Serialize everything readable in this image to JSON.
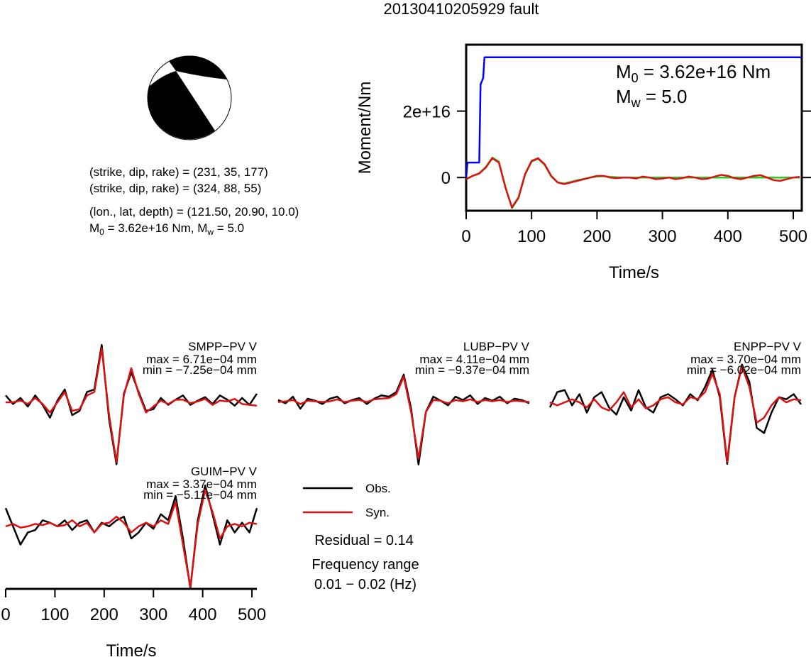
{
  "title": "20130410205929 fault",
  "mechanism": {
    "plane1": "(strike, dip, rake) = (231, 35, 177)",
    "plane2": "(strike, dip, rake) = (324, 88, 55)",
    "location": "(lon., lat, depth) = (121.50, 20.90, 10.0)",
    "m0_symbol": "M",
    "m0_sub": "0",
    "m0_text": " = 3.62e+16 Nm, ",
    "mw_symbol": "M",
    "mw_sub": "w",
    "mw_text": " = 5.0"
  },
  "summary": {
    "residual": "Residual = 0.14",
    "frequency_range": "Frequency range",
    "frequency_values": "0.01 − 0.02 (Hz)"
  },
  "chart_data": [
    {
      "type": "line",
      "xlabel": "Time/s",
      "ylabel": "Moment/Nm",
      "xlim": [
        0,
        513
      ],
      "ylim": [
        -1e+16,
        4e+16
      ],
      "xticks": [
        0,
        100,
        200,
        300,
        400,
        500
      ],
      "yticks": [
        0,
        {
          "value": 2e+16,
          "label": "2e+16"
        }
      ],
      "annotations": [
        {
          "symbol": "M",
          "sub": "0",
          "text": " = 3.62e+16 Nm"
        },
        {
          "symbol": "M",
          "sub": "w",
          "text": " = 5.0"
        }
      ],
      "x": [
        0,
        10,
        20,
        30,
        40,
        50,
        60,
        70,
        80,
        90,
        100,
        110,
        120,
        130,
        140,
        150,
        160,
        170,
        180,
        190,
        200,
        210,
        220,
        230,
        240,
        250,
        260,
        270,
        280,
        290,
        300,
        310,
        320,
        330,
        340,
        350,
        360,
        370,
        380,
        390,
        400,
        410,
        420,
        430,
        440,
        450,
        460,
        470,
        480,
        490,
        500,
        510
      ],
      "series": [
        {
          "color": "#0000ff",
          "x": [
            0,
            2,
            20,
            22,
            26,
            28,
            513
          ],
          "values": [
            0,
            4500000000000000.0,
            4500000000000000.0,
            2.8e+16,
            3e+16,
            3.62e+16,
            3.62e+16
          ]
        },
        {
          "color": "#22cc22",
          "values": [
            -500000000000000.0,
            500000000000000.0,
            1300000000000000.0,
            3200000000000000.0,
            6000000000000000.0,
            4800000000000000.0,
            -2800000000000000.0,
            -9200000000000000.0,
            -6200000000000000.0,
            800000000000000.0,
            4800000000000000.0,
            5600000000000000.0,
            3800000000000000.0,
            300000000000000.0,
            -1500000000000000.0,
            -1800000000000000.0,
            -1300000000000000.0,
            -800000000000000.0,
            -400000000000000.0,
            0,
            300000000000000.0,
            400000000000000.0,
            200000000000000.0,
            100000000000000.0,
            0,
            0,
            0,
            0,
            0,
            0,
            0,
            0,
            0,
            0,
            0,
            0,
            0,
            0,
            0,
            0,
            0,
            0,
            0,
            0,
            0,
            0,
            0,
            0,
            0,
            0,
            0,
            0
          ]
        },
        {
          "color": "#dd1111",
          "values": [
            -500000000000000.0,
            500000000000000.0,
            1200000000000000.0,
            3000000000000000.0,
            5800000000000000.0,
            4500000000000000.0,
            -3000000000000000.0,
            -9000000000000000.0,
            -6000000000000000.0,
            1000000000000000.0,
            5000000000000000.0,
            5800000000000000.0,
            4000000000000000.0,
            500000000000000.0,
            -1500000000000000.0,
            -2000000000000000.0,
            -1500000000000000.0,
            -1000000000000000.0,
            -500000000000000.0,
            0,
            500000000000000.0,
            500000000000000.0,
            0,
            -200000000000000.0,
            0,
            0,
            -300000000000000.0,
            300000000000000.0,
            0,
            -500000000000000.0,
            -300000000000000.0,
            0,
            -500000000000000.0,
            -200000000000000.0,
            300000000000000.0,
            0,
            -500000000000000.0,
            -300000000000000.0,
            300000000000000.0,
            800000000000000.0,
            500000000000000.0,
            -200000000000000.0,
            -500000000000000.0,
            0,
            500000000000000.0,
            700000000000000.0,
            0,
            -800000000000000.0,
            -1000000000000000.0,
            -500000000000000.0,
            0,
            200000000000000.0
          ]
        }
      ]
    },
    {
      "type": "line",
      "title": "SMPP−PV V",
      "max_label": "max = 6.71e−04 mm",
      "min_label": "min = −7.25e−04 mm",
      "xlim": [
        0,
        510
      ],
      "ylim": [
        -0.00073,
        0.000705
      ],
      "x": [
        0,
        15,
        30,
        45,
        60,
        75,
        90,
        105,
        120,
        135,
        150,
        165,
        180,
        195,
        210,
        225,
        240,
        255,
        270,
        285,
        300,
        315,
        330,
        345,
        360,
        375,
        390,
        405,
        420,
        435,
        450,
        465,
        480,
        495,
        510
      ],
      "series": [
        {
          "color": "#000000",
          "values": [
            8e-05,
            -2e-05,
            5e-05,
            -5e-05,
            8e-05,
            -3e-05,
            -0.00018,
            2e-05,
            0.00015,
            -0.00015,
            -0.0001,
            0.00012,
            0.00015,
            0.000671,
            -0.0002,
            -0.000725,
            0.0001,
            0.00035,
            0.00012,
            -0.0001,
            -8e-05,
            5e-05,
            -3e-05,
            3e-05,
            8e-05,
            -3e-05,
            2e-05,
            6e-05,
            -2e-05,
            8e-05,
            3e-05,
            -4e-05,
            5e-05,
            -3e-05,
            0.0001
          ]
        },
        {
          "color": "#dd1111",
          "values": [
            0,
            0,
            2e-05,
            -2e-05,
            5e-05,
            -2e-05,
            -0.00012,
            0,
            0.00012,
            -0.0001,
            -8e-05,
            8e-05,
            0.00012,
            0.00063,
            -0.00015,
            -0.0007,
            8e-05,
            0.0004,
            0.0001,
            -0.00012,
            -5e-05,
            2e-05,
            -2e-05,
            3e-05,
            3e-05,
            -1e-05,
            1e-05,
            4e-05,
            -3e-05,
            2e-05,
            1e-05,
            4e-05,
            -2e-05,
            -3e-05,
            -4e-05
          ]
        }
      ]
    },
    {
      "type": "line",
      "title": "LUBP−PV V",
      "max_label": "max = 4.11e−04 mm",
      "min_label": "min = −9.37e−04 mm",
      "xlim": [
        0,
        510
      ],
      "ylim": [
        -0.00094,
        0.0009
      ],
      "x": [
        0,
        15,
        30,
        45,
        60,
        75,
        90,
        105,
        120,
        135,
        150,
        165,
        180,
        195,
        210,
        225,
        240,
        255,
        270,
        285,
        300,
        315,
        330,
        345,
        360,
        375,
        390,
        405,
        420,
        435,
        450,
        465,
        480,
        495,
        510
      ],
      "series": [
        {
          "color": "#000000",
          "values": [
            3e-05,
            -2e-05,
            8e-05,
            -0.0001,
            5e-05,
            2e-05,
            -3e-05,
            5e-05,
            8e-05,
            -2e-05,
            3e-05,
            6e-05,
            -3e-05,
            5e-05,
            0.0001,
            8e-05,
            0.00015,
            0.000411,
            -0.0001,
            -0.000937,
            -0.00015,
            8e-05,
            2e-05,
            -5e-05,
            8e-05,
            3e-05,
            0.0001,
            -3e-05,
            6e-05,
            2e-05,
            8e-05,
            -2e-05,
            5e-05,
            3e-05,
            -2e-05
          ]
        },
        {
          "color": "#dd1111",
          "values": [
            0,
            1e-05,
            3e-05,
            -3e-05,
            2e-05,
            1e-05,
            0,
            1e-05,
            4e-05,
            0,
            2e-05,
            3e-05,
            0,
            4e-05,
            5e-05,
            6e-05,
            0.00012,
            0.00038,
            -0.00015,
            -0.00085,
            -0.00015,
            3e-05,
            2e-05,
            -2e-05,
            3e-05,
            1e-05,
            4e-05,
            0,
            3e-05,
            1e-05,
            3e-05,
            0,
            2e-05,
            1e-05,
            0
          ]
        }
      ]
    },
    {
      "type": "line",
      "title": "ENPP−PV V",
      "max_label": "max = 3.70e−04 mm",
      "min_label": "min = −6.02e−04 mm",
      "xlim": [
        0,
        510
      ],
      "ylim": [
        -0.00061,
        0.00059
      ],
      "x": [
        0,
        15,
        30,
        45,
        60,
        75,
        90,
        105,
        120,
        135,
        150,
        165,
        180,
        195,
        210,
        225,
        240,
        255,
        270,
        285,
        300,
        315,
        330,
        345,
        360,
        375,
        390,
        405,
        420,
        435,
        450,
        465,
        480,
        495,
        510
      ],
      "series": [
        {
          "color": "#000000",
          "values": [
            -5e-05,
            0.0001,
            0.00012,
            -3e-05,
            8e-05,
            -0.0001,
            5e-05,
            0.0001,
            -5e-05,
            -0.00012,
            5e-05,
            -8e-05,
            0.00012,
            -5e-05,
            -0.0001,
            5e-05,
            8e-05,
            3e-05,
            -3e-05,
            8e-05,
            2e-05,
            0.00015,
            0.00032,
            5e-05,
            -0.000602,
            5e-05,
            0.00037,
            0.0002,
            -0.00025,
            -0.0003,
            -0.0001,
            5e-05,
            3e-05,
            8e-05,
            -2e-05
          ]
        },
        {
          "color": "#dd1111",
          "values": [
            0,
            -3e-05,
            0,
            3e-05,
            0,
            -5e-05,
            3e-05,
            -5e-05,
            -8e-05,
            0,
            0.0001,
            -5e-05,
            3e-05,
            -6e-05,
            -3e-05,
            3e-05,
            5e-05,
            0,
            -2e-05,
            5e-05,
            3e-05,
            0.0001,
            0.00028,
            8e-05,
            -0.00058,
            5e-05,
            0.00035,
            0.00015,
            -0.0002,
            -0.00015,
            -3e-05,
            5e-05,
            0,
            3e-05,
            2e-05
          ]
        }
      ]
    },
    {
      "type": "line",
      "title": "GUIM−PV V",
      "max_label": "max = 3.37e−04 mm",
      "min_label": "min = −5.11e−04 mm",
      "xlabel": "Time/s",
      "xlim": [
        0,
        510
      ],
      "ylim": [
        -0.000515,
        0.00035
      ],
      "xticks": [
        0,
        100,
        200,
        300,
        400,
        500
      ],
      "x": [
        0,
        15,
        30,
        45,
        60,
        75,
        90,
        105,
        120,
        135,
        150,
        165,
        180,
        195,
        210,
        225,
        240,
        255,
        270,
        285,
        300,
        315,
        330,
        345,
        360,
        375,
        390,
        405,
        420,
        435,
        450,
        465,
        480,
        495,
        510
      ],
      "series": [
        {
          "name": "Obs.",
          "color": "#000000",
          "values": [
            0.00015,
            0,
            -0.00015,
            -5e-05,
            -3e-05,
            5e-05,
            3e-05,
            0,
            5e-05,
            -3e-05,
            3e-05,
            5e-05,
            -5e-05,
            3e-05,
            0,
            5e-05,
            8e-05,
            -0.0001,
            -5e-05,
            3e-05,
            -2e-05,
            0.0001,
            5e-05,
            0.00025,
            -0.0001,
            -0.000511,
            5e-05,
            0.000337,
            0.0001,
            -0.00015,
            5e-05,
            -5e-05,
            3e-05,
            -5e-05,
            0.00015
          ]
        },
        {
          "name": "Syn.",
          "color": "#dd1111",
          "values": [
            0,
            2e-05,
            -1e-05,
            0,
            2e-05,
            1e-05,
            3e-05,
            0,
            1e-05,
            5e-05,
            0,
            3e-05,
            -5e-05,
            2e-05,
            3e-05,
            8e-05,
            3e-05,
            -5e-05,
            0,
            3e-05,
            0,
            5e-05,
            2e-05,
            0.0002,
            -0.00015,
            -0.0005,
            2e-05,
            0.0003,
            0.00012,
            -0.0001,
            0,
            2e-05,
            0,
            3e-05,
            2e-05
          ]
        }
      ]
    }
  ]
}
